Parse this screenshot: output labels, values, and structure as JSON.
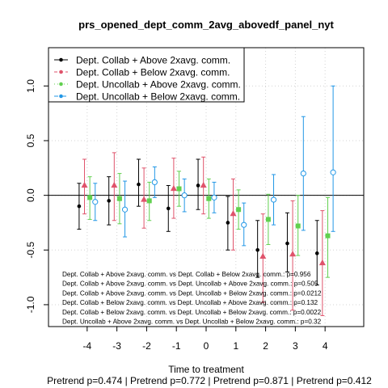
{
  "chart_data": {
    "type": "scatter",
    "title": "prs_opened_dept_comm_2avg_abovedf_panel_nyt",
    "xlabel": "Time to treatment",
    "subtitle": "Pretrend p=0.474 | Pretrend p=0.772 | Pretrend p=0.871 | Pretrend p=0.412",
    "x": [
      -4,
      -3,
      -2,
      -1,
      0,
      1,
      2,
      3,
      4
    ],
    "x_tick_labels": [
      "-4",
      "-3",
      "-2",
      "-1",
      "0",
      "1",
      "2",
      "3",
      "4"
    ],
    "xlim": [
      -5.3,
      5.3
    ],
    "ylim": [
      -1.2,
      1.35
    ],
    "y_ticks": [
      -1.0,
      -0.5,
      0.0,
      0.5,
      1.0
    ],
    "y_tick_labels": [
      "-1.0",
      "-0.5",
      "0.0",
      "0.5",
      "1.0"
    ],
    "grid": true,
    "legend_position": "top-left",
    "series": [
      {
        "name": "Dept. Collab + Above 2xavg. comm.",
        "color": "#000000",
        "marker": "circle",
        "offset": -0.27,
        "values": [
          -0.1,
          -0.05,
          0.1,
          -0.12,
          0.09,
          -0.25,
          -0.5,
          -0.44,
          -0.53
        ],
        "lower": [
          -0.31,
          -0.27,
          -0.1,
          -0.33,
          -0.13,
          -0.5,
          -0.75,
          -0.7,
          -0.82
        ],
        "upper": [
          0.11,
          0.17,
          0.33,
          0.09,
          0.33,
          -0.01,
          -0.23,
          -0.16,
          -0.23
        ]
      },
      {
        "name": "Dept. Collab + Below 2xavg. comm.",
        "color": "#DF536B",
        "marker": "triangle",
        "offset": -0.09,
        "values": [
          0.09,
          0.09,
          -0.04,
          0.06,
          0.09,
          -0.17,
          -0.56,
          -0.54,
          -0.62
        ],
        "lower": [
          -0.17,
          -0.23,
          -0.3,
          -0.21,
          -0.17,
          -0.5,
          -0.98,
          -1.05,
          -1.1
        ],
        "upper": [
          0.33,
          0.39,
          0.25,
          0.34,
          0.35,
          0.15,
          -0.17,
          -0.05,
          -0.14
        ]
      },
      {
        "name": "Dept. Uncollab + Above 2xavg. comm.",
        "color": "#61D04F",
        "marker": "square",
        "offset": 0.09,
        "values": [
          -0.02,
          -0.03,
          -0.05,
          0.06,
          -0.03,
          -0.13,
          -0.22,
          -0.28,
          -0.37
        ],
        "lower": [
          -0.22,
          -0.26,
          -0.23,
          -0.1,
          -0.21,
          -0.31,
          -0.45,
          -0.55,
          -0.75
        ],
        "upper": [
          0.17,
          0.2,
          0.12,
          0.22,
          0.15,
          0.05,
          0.01,
          0.0,
          -0.02
        ]
      },
      {
        "name": "Dept. Uncollab + Below 2xavg. comm.",
        "color": "#2297E6",
        "marker": "open-circle",
        "offset": 0.27,
        "values": [
          -0.06,
          -0.13,
          0.12,
          0.0,
          -0.02,
          -0.27,
          -0.04,
          0.2,
          0.21
        ],
        "lower": [
          -0.23,
          -0.38,
          -0.02,
          -0.15,
          -0.16,
          -0.46,
          -0.27,
          -0.32,
          -0.33
        ],
        "upper": [
          0.11,
          0.13,
          0.26,
          0.15,
          0.12,
          -0.07,
          0.19,
          0.72,
          1.0
        ]
      }
    ],
    "annotations": [
      "Dept. Collab + Above 2xavg. comm. vs Dept. Collab + Below 2xavg. comm.: p=0.956",
      "Dept. Collab + Above 2xavg. comm. vs Dept. Uncollab + Above 2xavg. comm.: p=0.505",
      "Dept. Collab + Above 2xavg. comm. vs Dept. Uncollab + Below 2xavg. comm.: p=0.0212",
      "Dept. Collab + Below 2xavg. comm. vs Dept. Uncollab + Above 2xavg. comm.: p=0.132",
      "Dept. Collab + Below 2xavg. comm. vs Dept. Uncollab + Below 2xavg. comm.: p=0.0022",
      "Dept. Uncollab + Above 2xavg. comm. vs Dept. Uncollab + Below 2xavg. comm.: p=0.32"
    ]
  }
}
